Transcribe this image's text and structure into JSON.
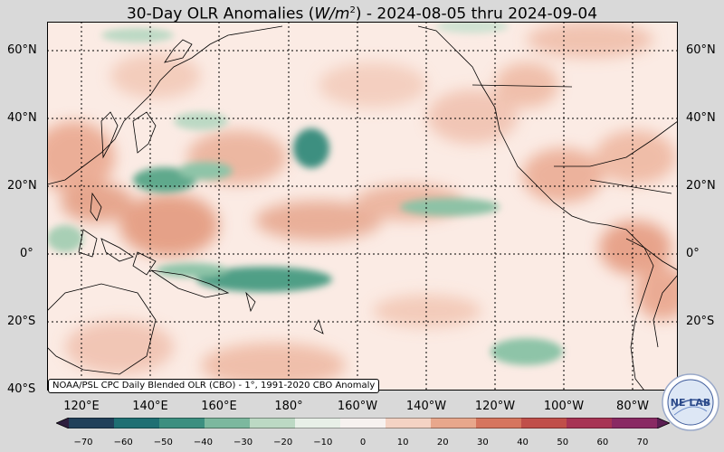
{
  "title": {
    "prefix": "30-Day OLR Anomalies (",
    "unit_base": "W/m",
    "unit_exp": "2",
    "suffix": ") - 2024-08-05 thru 2024-09-04"
  },
  "lat_labels": [
    "60°N",
    "40°N",
    "20°N",
    "0°",
    "20°S",
    "40°S"
  ],
  "lon_labels": [
    "120°E",
    "140°E",
    "160°E",
    "180°",
    "160°W",
    "140°W",
    "120°W",
    "100°W",
    "80°W"
  ],
  "credit": "NOAA/PSL CPC Daily Blended OLR (CBO) - 1°, 1991-2020 CBO Anomaly",
  "colorbar": {
    "min": -70,
    "max": 70,
    "ticks": [
      "−70",
      "−60",
      "−50",
      "−40",
      "−30",
      "−20",
      "−10",
      "0",
      "10",
      "20",
      "30",
      "40",
      "50",
      "60",
      "70"
    ],
    "colors": [
      "#2d1e3e",
      "#21405a",
      "#1f6f73",
      "#3c8f80",
      "#7cb89e",
      "#bcd9c4",
      "#e8f0e8",
      "#f7f2f0",
      "#f4d3c4",
      "#e8a78c",
      "#d6755e",
      "#c04f4a",
      "#a73454",
      "#892a63",
      "#5a1e52"
    ]
  },
  "logo": {
    "text": "NE LAB",
    "icon": "noaa-psl-logo"
  },
  "background_color": "#fbe9e3"
}
